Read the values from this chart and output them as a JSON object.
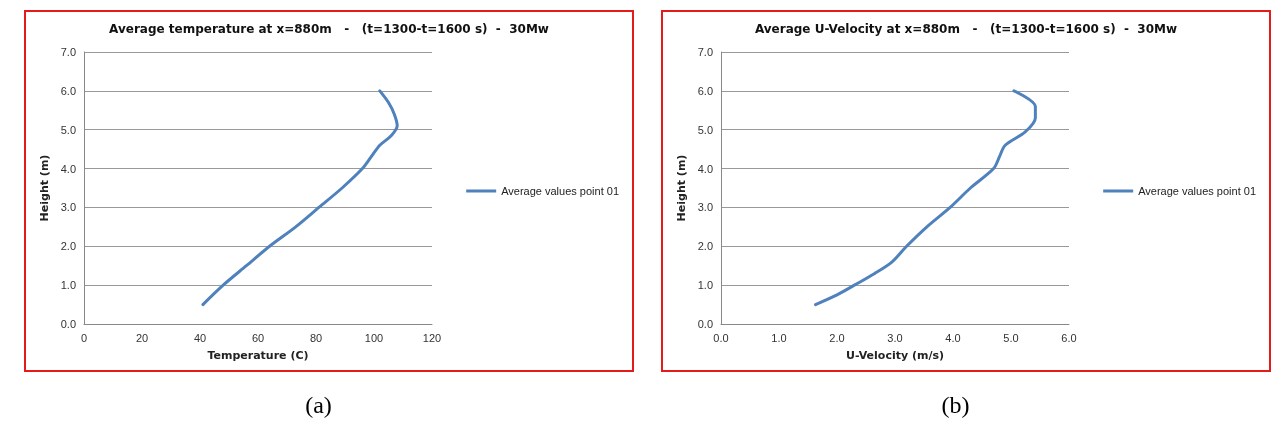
{
  "chart_data": [
    {
      "type": "line",
      "title": "Average temperature at x=880m   -   (t=1300-t=1600 s)  -  30Mw",
      "xlabel": "Temperature (C)",
      "ylabel": "Height (m)",
      "annotations": [
        "(a)"
      ],
      "series": [
        {
          "name": "Average values point 01",
          "color": "#4f81bd",
          "x": [
            41,
            48,
            56,
            64,
            73,
            81,
            89,
            96,
            99,
            102,
            106,
            108,
            107,
            105,
            102
          ],
          "values": [
            0.5,
            1.0,
            1.5,
            2.0,
            2.5,
            3.0,
            3.5,
            4.0,
            4.3,
            4.6,
            4.85,
            5.1,
            5.4,
            5.7,
            6.0
          ]
        }
      ],
      "xlim": [
        0,
        120
      ],
      "xticks": [
        0,
        20,
        40,
        60,
        80,
        100,
        120
      ],
      "ylim": [
        0,
        7
      ],
      "yticks": [
        {
          "value": 0,
          "label": "0.0"
        },
        {
          "value": 1,
          "label": "1.0"
        },
        {
          "value": 2,
          "label": "2.0"
        },
        {
          "value": 3,
          "label": "3.0"
        },
        {
          "value": 4,
          "label": "4.0"
        },
        {
          "value": 5,
          "label": "5.0"
        },
        {
          "value": 6,
          "label": "6.0"
        },
        {
          "value": 7,
          "label": "7.0"
        }
      ],
      "grid": "y",
      "legend": "right",
      "marker": "none",
      "line_style": "solid"
    },
    {
      "type": "line",
      "title": "Average U-Velocity at x=880m   -   (t=1300-t=1600 s)  -  30Mw",
      "xlabel": "U-Velocity (m/s)",
      "ylabel": "Height (m)",
      "annotations": [
        "(b)"
      ],
      "series": [
        {
          "name": "Average values point 01",
          "color": "#4f81bd",
          "x": [
            1.63,
            2.0,
            2.3,
            2.65,
            2.95,
            3.2,
            3.55,
            3.95,
            4.3,
            4.7,
            4.8,
            4.9,
            5.25,
            5.42,
            5.42,
            5.05
          ],
          "values": [
            0.5,
            0.75,
            1.0,
            1.3,
            1.6,
            2.0,
            2.5,
            3.0,
            3.5,
            4.0,
            4.3,
            4.6,
            4.95,
            5.3,
            5.6,
            6.0
          ]
        }
      ],
      "xlim": [
        0,
        6
      ],
      "xticks": [
        {
          "value": 0,
          "label": "0.0"
        },
        {
          "value": 1,
          "label": "1.0"
        },
        {
          "value": 2,
          "label": "2.0"
        },
        {
          "value": 3,
          "label": "3.0"
        },
        {
          "value": 4,
          "label": "4.0"
        },
        {
          "value": 5,
          "label": "5.0"
        },
        {
          "value": 6,
          "label": "6.0"
        }
      ],
      "ylim": [
        0,
        7
      ],
      "yticks": [
        {
          "value": 0,
          "label": "0.0"
        },
        {
          "value": 1,
          "label": "1.0"
        },
        {
          "value": 2,
          "label": "2.0"
        },
        {
          "value": 3,
          "label": "3.0"
        },
        {
          "value": 4,
          "label": "4.0"
        },
        {
          "value": 5,
          "label": "5.0"
        },
        {
          "value": 6,
          "label": "6.0"
        },
        {
          "value": 7,
          "label": "7.0"
        }
      ],
      "grid": "y",
      "legend": "right",
      "marker": "none",
      "line_style": "solid"
    }
  ]
}
